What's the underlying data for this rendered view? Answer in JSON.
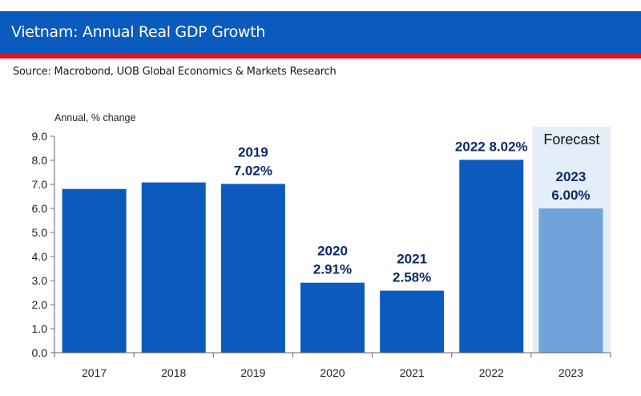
{
  "header": {
    "title": "Vietnam: Annual Real GDP Growth",
    "source": "Source: Macrobond, UOB Global Economics & Markets Research"
  },
  "colors": {
    "bar": "#0a5bbd",
    "forecast_bar": "#6fa3d9",
    "forecast_bg": "#e4eef8",
    "label": "#0c2a6b"
  },
  "chart_data": {
    "type": "bar",
    "title": "Vietnam: Annual Real GDP Growth",
    "ylabel": "Annual, % change",
    "xlabel": "",
    "categories": [
      "2017",
      "2018",
      "2019",
      "2020",
      "2021",
      "2022",
      "2023"
    ],
    "values": [
      6.81,
      7.08,
      7.02,
      2.91,
      2.58,
      8.02,
      6.0
    ],
    "forecast": [
      false,
      false,
      false,
      false,
      false,
      false,
      true
    ],
    "ylim": [
      0,
      9
    ],
    "yticks": [
      "0.0",
      "1.0",
      "2.0",
      "3.0",
      "4.0",
      "5.0",
      "6.0",
      "7.0",
      "8.0",
      "9.0"
    ],
    "forecast_label": "Forecast",
    "annotations": [
      {
        "index": 2,
        "lines": [
          "2019",
          "7.02%"
        ]
      },
      {
        "index": 3,
        "lines": [
          "2020",
          "2.91%"
        ]
      },
      {
        "index": 4,
        "lines": [
          "2021",
          "2.58%"
        ]
      },
      {
        "index": 5,
        "lines": [
          "2022  8.02%"
        ]
      },
      {
        "index": 6,
        "lines": [
          "2023",
          "6.00%"
        ]
      }
    ]
  }
}
